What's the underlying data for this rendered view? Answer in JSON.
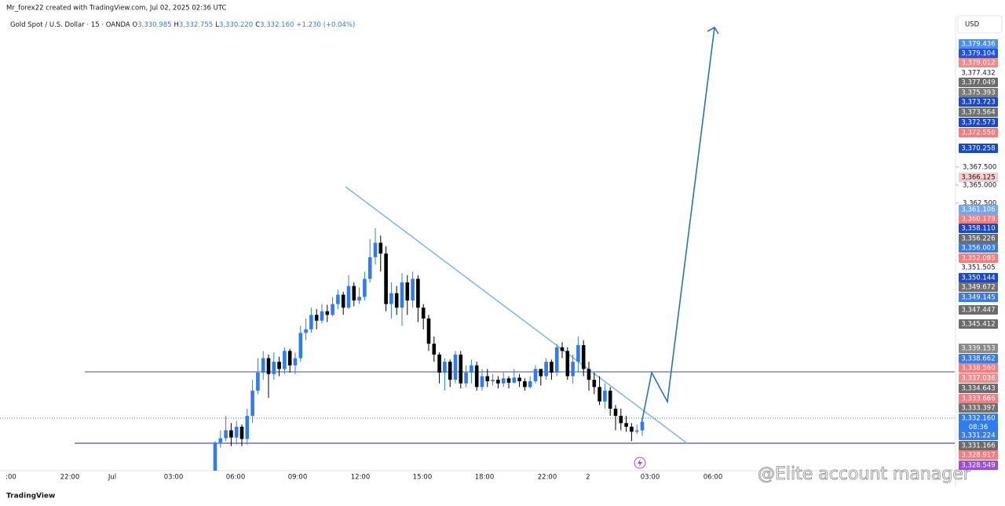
{
  "chart_data": {
    "type": "candlestick",
    "title": "Mr_forex22 created with TradingView.com, Jul 02, 2025 02:36 UTC",
    "symbol": "Gold Spot / U.S. Dollar · 15 · OANDA",
    "ohlc_header": {
      "o_key": "O",
      "o": "3,330.985",
      "h_key": "H",
      "h": "3,332.755",
      "l_key": "L",
      "l": "3,330.220",
      "c_key": "C",
      "c": "3,332.160",
      "change": "+1.230 (+0.04%)"
    },
    "currency": "USD",
    "countdown": "08:36",
    "watermark": "@Elite account manager",
    "brand": "TradingView",
    "up_color": "#2f7bf0",
    "down_color": "#000000",
    "ylim": [
      3325.4,
      3386.3
    ],
    "yticks": [
      {
        "value": 3367.5,
        "label": "3,367.500"
      },
      {
        "value": 3365,
        "label": "3,365.000"
      },
      {
        "value": 3362.5,
        "label": "3,362.500"
      }
    ],
    "x_labels": [
      ":00",
      "22:00",
      "Jul",
      "03:00",
      "06:00",
      "09:00",
      "12:00",
      "15:00",
      "18:00",
      "22:00",
      "2",
      "03:00",
      "06:00"
    ],
    "candles": [
      {
        "o": 3325.4,
        "h": 3329.5,
        "l": 3325.4,
        "c": 3329.3
      },
      {
        "o": 3329.3,
        "h": 3331.0,
        "l": 3328.6,
        "c": 3329.9
      },
      {
        "o": 3329.9,
        "h": 3333.0,
        "l": 3329.5,
        "c": 3331.0
      },
      {
        "o": 3331.0,
        "h": 3332.0,
        "l": 3328.8,
        "c": 3330.0
      },
      {
        "o": 3330.0,
        "h": 3332.3,
        "l": 3329.0,
        "c": 3331.5
      },
      {
        "o": 3331.5,
        "h": 3331.8,
        "l": 3328.8,
        "c": 3329.8
      },
      {
        "o": 3329.8,
        "h": 3334.0,
        "l": 3329.0,
        "c": 3333.0
      },
      {
        "o": 3333.0,
        "h": 3338.0,
        "l": 3332.0,
        "c": 3336.5
      },
      {
        "o": 3336.5,
        "h": 3341.0,
        "l": 3336.0,
        "c": 3339.0
      },
      {
        "o": 3339.0,
        "h": 3342.0,
        "l": 3338.0,
        "c": 3341.0
      },
      {
        "o": 3341.0,
        "h": 3341.5,
        "l": 3335.5,
        "c": 3338.8
      },
      {
        "o": 3338.8,
        "h": 3341.8,
        "l": 3338.0,
        "c": 3340.5
      },
      {
        "o": 3340.5,
        "h": 3341.2,
        "l": 3338.5,
        "c": 3339.5
      },
      {
        "o": 3339.5,
        "h": 3342.5,
        "l": 3338.8,
        "c": 3342.0
      },
      {
        "o": 3342.0,
        "h": 3342.3,
        "l": 3339.0,
        "c": 3340.0
      },
      {
        "o": 3340.0,
        "h": 3341.8,
        "l": 3338.8,
        "c": 3341.0
      },
      {
        "o": 3341.0,
        "h": 3345.5,
        "l": 3340.5,
        "c": 3344.5
      },
      {
        "o": 3344.5,
        "h": 3346.5,
        "l": 3343.5,
        "c": 3345.0
      },
      {
        "o": 3345.0,
        "h": 3348.0,
        "l": 3344.5,
        "c": 3347.0
      },
      {
        "o": 3347.0,
        "h": 3347.8,
        "l": 3345.0,
        "c": 3346.2
      },
      {
        "o": 3346.2,
        "h": 3348.5,
        "l": 3345.8,
        "c": 3347.5
      },
      {
        "o": 3347.5,
        "h": 3348.4,
        "l": 3346.0,
        "c": 3347.0
      },
      {
        "o": 3347.0,
        "h": 3349.5,
        "l": 3346.8,
        "c": 3348.5
      },
      {
        "o": 3348.5,
        "h": 3350.5,
        "l": 3347.8,
        "c": 3349.8
      },
      {
        "o": 3349.8,
        "h": 3350.2,
        "l": 3347.0,
        "c": 3348.0
      },
      {
        "o": 3348.0,
        "h": 3352.5,
        "l": 3347.8,
        "c": 3351.0
      },
      {
        "o": 3351.0,
        "h": 3351.5,
        "l": 3348.2,
        "c": 3349.0
      },
      {
        "o": 3349.0,
        "h": 3350.8,
        "l": 3348.5,
        "c": 3349.5
      },
      {
        "o": 3349.5,
        "h": 3353.0,
        "l": 3349.0,
        "c": 3352.0
      },
      {
        "o": 3352.0,
        "h": 3357.5,
        "l": 3351.5,
        "c": 3355.0
      },
      {
        "o": 3355.0,
        "h": 3359.0,
        "l": 3354.0,
        "c": 3357.0
      },
      {
        "o": 3357.0,
        "h": 3358.0,
        "l": 3353.0,
        "c": 3355.5
      },
      {
        "o": 3355.5,
        "h": 3356.5,
        "l": 3347.5,
        "c": 3348.5
      },
      {
        "o": 3348.5,
        "h": 3351.5,
        "l": 3346.5,
        "c": 3350.0
      },
      {
        "o": 3350.0,
        "h": 3351.0,
        "l": 3347.0,
        "c": 3348.0
      },
      {
        "o": 3348.0,
        "h": 3352.8,
        "l": 3345.5,
        "c": 3351.5
      },
      {
        "o": 3351.5,
        "h": 3352.5,
        "l": 3347.0,
        "c": 3349.0
      },
      {
        "o": 3349.0,
        "h": 3353.0,
        "l": 3348.0,
        "c": 3352.0
      },
      {
        "o": 3352.0,
        "h": 3352.5,
        "l": 3346.0,
        "c": 3348.0
      },
      {
        "o": 3348.0,
        "h": 3348.5,
        "l": 3345.0,
        "c": 3346.5
      },
      {
        "o": 3346.5,
        "h": 3347.0,
        "l": 3342.0,
        "c": 3343.0
      },
      {
        "o": 3343.0,
        "h": 3344.0,
        "l": 3340.5,
        "c": 3341.5
      },
      {
        "o": 3341.5,
        "h": 3341.8,
        "l": 3337.5,
        "c": 3339.0
      },
      {
        "o": 3339.0,
        "h": 3341.0,
        "l": 3336.5,
        "c": 3340.5
      },
      {
        "o": 3340.5,
        "h": 3340.8,
        "l": 3337.0,
        "c": 3338.0
      },
      {
        "o": 3338.0,
        "h": 3342.0,
        "l": 3337.5,
        "c": 3341.5
      },
      {
        "o": 3341.5,
        "h": 3342.0,
        "l": 3336.8,
        "c": 3337.5
      },
      {
        "o": 3337.5,
        "h": 3340.0,
        "l": 3337.0,
        "c": 3339.0
      },
      {
        "o": 3339.0,
        "h": 3340.8,
        "l": 3337.5,
        "c": 3340.0
      },
      {
        "o": 3340.0,
        "h": 3340.5,
        "l": 3336.5,
        "c": 3337.0
      },
      {
        "o": 3337.0,
        "h": 3339.5,
        "l": 3336.5,
        "c": 3338.5
      },
      {
        "o": 3338.5,
        "h": 3339.5,
        "l": 3337.0,
        "c": 3337.8
      },
      {
        "o": 3337.8,
        "h": 3338.8,
        "l": 3337.2,
        "c": 3338.0
      },
      {
        "o": 3338.0,
        "h": 3338.5,
        "l": 3336.8,
        "c": 3337.5
      },
      {
        "o": 3337.5,
        "h": 3339.0,
        "l": 3337.0,
        "c": 3338.2
      },
      {
        "o": 3338.2,
        "h": 3338.5,
        "l": 3336.8,
        "c": 3337.6
      },
      {
        "o": 3337.6,
        "h": 3339.5,
        "l": 3337.5,
        "c": 3338.3
      },
      {
        "o": 3338.3,
        "h": 3338.8,
        "l": 3337.0,
        "c": 3337.8
      },
      {
        "o": 3337.8,
        "h": 3338.2,
        "l": 3336.5,
        "c": 3337.0
      },
      {
        "o": 3337.0,
        "h": 3338.5,
        "l": 3336.8,
        "c": 3337.8
      },
      {
        "o": 3337.8,
        "h": 3340.0,
        "l": 3337.5,
        "c": 3339.5
      },
      {
        "o": 3339.5,
        "h": 3339.5,
        "l": 3337.2,
        "c": 3338.5
      },
      {
        "o": 3338.5,
        "h": 3341.0,
        "l": 3338.0,
        "c": 3340.5
      },
      {
        "o": 3340.5,
        "h": 3340.8,
        "l": 3338.0,
        "c": 3339.0
      },
      {
        "o": 3339.0,
        "h": 3343.0,
        "l": 3338.5,
        "c": 3342.5
      },
      {
        "o": 3342.5,
        "h": 3343.2,
        "l": 3341.0,
        "c": 3342.0
      },
      {
        "o": 3342.0,
        "h": 3342.5,
        "l": 3338.0,
        "c": 3338.5
      },
      {
        "o": 3338.5,
        "h": 3341.5,
        "l": 3337.5,
        "c": 3340.5
      },
      {
        "o": 3340.5,
        "h": 3344.0,
        "l": 3339.0,
        "c": 3342.8
      },
      {
        "o": 3342.8,
        "h": 3343.5,
        "l": 3338.5,
        "c": 3339.5
      },
      {
        "o": 3339.5,
        "h": 3340.5,
        "l": 3336.5,
        "c": 3338.0
      },
      {
        "o": 3338.0,
        "h": 3339.0,
        "l": 3336.0,
        "c": 3337.0
      },
      {
        "o": 3337.0,
        "h": 3338.5,
        "l": 3334.5,
        "c": 3335.0
      },
      {
        "o": 3335.0,
        "h": 3337.5,
        "l": 3334.0,
        "c": 3336.5
      },
      {
        "o": 3336.5,
        "h": 3337.0,
        "l": 3333.0,
        "c": 3334.0
      },
      {
        "o": 3334.0,
        "h": 3334.5,
        "l": 3331.0,
        "c": 3333.0
      },
      {
        "o": 3333.0,
        "h": 3334.0,
        "l": 3331.0,
        "c": 3332.0
      },
      {
        "o": 3332.0,
        "h": 3333.0,
        "l": 3330.8,
        "c": 3331.5
      },
      {
        "o": 3331.5,
        "h": 3332.0,
        "l": 3329.5,
        "c": 3330.8
      },
      {
        "o": 3330.8,
        "h": 3331.8,
        "l": 3330.5,
        "c": 3330.985
      },
      {
        "o": 3330.985,
        "h": 3332.755,
        "l": 3330.22,
        "c": 3332.16
      }
    ],
    "badges": [
      {
        "value": 3379.436,
        "label": "3,379.436",
        "color": "#4a8ff0"
      },
      {
        "value": 3379.104,
        "label": "3,379.104",
        "color": "#1e53e5"
      },
      {
        "value": 3379.012,
        "label": "3,379.012",
        "color": "#f28b8b"
      },
      {
        "value": 3377.432,
        "label": "3,377.432",
        "color": "#ffffff"
      },
      {
        "value": 3377.049,
        "label": "3,377.049",
        "color": "#6b6b6b"
      },
      {
        "value": 3375.393,
        "label": "3,375.393",
        "color": "#7a7a7a"
      },
      {
        "value": 3373.723,
        "label": "3,373.723",
        "color": "#1848cc"
      },
      {
        "value": 3373.564,
        "label": "3,373.564",
        "color": "#707070"
      },
      {
        "value": 3372.573,
        "label": "3,372.573",
        "color": "#1848cc"
      },
      {
        "value": 3372.556,
        "label": "3,372.556",
        "color": "#f77c80"
      },
      {
        "value": 3370.258,
        "label": "3,370.258",
        "color": "#1848cc"
      },
      {
        "value": 3366.125,
        "label": "3,366.125",
        "color": "#f8cccc"
      },
      {
        "value": 3361.106,
        "label": "3,361.106",
        "color": "#6fa8f0"
      },
      {
        "value": 3360.178,
        "label": "3,360.178",
        "color": "#f77c80"
      },
      {
        "value": 3358.11,
        "label": "3,358.110",
        "color": "#1848cc"
      },
      {
        "value": 3356.226,
        "label": "3,356.226",
        "color": "#6b6b6b"
      },
      {
        "value": 3356.003,
        "label": "3,356.003",
        "color": "#3d7be0"
      },
      {
        "value": 3352.085,
        "label": "3,352.085",
        "color": "#f77c80"
      },
      {
        "value": 3351.505,
        "label": "3,351.505",
        "color": "#ffffff"
      },
      {
        "value": 3350.144,
        "label": "3,350.144",
        "color": "#1848cc"
      },
      {
        "value": 3349.672,
        "label": "3,349.672",
        "color": "#707070"
      },
      {
        "value": 3349.145,
        "label": "3,349.145",
        "color": "#3d7be0"
      },
      {
        "value": 3347.447,
        "label": "3,347.447",
        "color": "#6b6b6b"
      },
      {
        "value": 3345.412,
        "label": "3,345.412",
        "color": "#6b6b6b"
      },
      {
        "value": 3339.153,
        "label": "3,339.153",
        "color": "#8a8a8a"
      },
      {
        "value": 3338.662,
        "label": "3,338.662",
        "color": "#3d7be0"
      },
      {
        "value": 3338.56,
        "label": "3,338.560",
        "color": "#f77c80"
      },
      {
        "value": 3337.036,
        "label": "3,337.036",
        "color": "#f08c8c"
      },
      {
        "value": 3334.643,
        "label": "3,334.643",
        "color": "#6b6b6b"
      },
      {
        "value": 3333.666,
        "label": "3,333.666",
        "color": "#f77c80"
      },
      {
        "value": 3333.397,
        "label": "3,333.397",
        "color": "#707070"
      },
      {
        "value": 3332.16,
        "label": "3,332.160",
        "color": "#2f7bf0"
      },
      {
        "value": 3331.224,
        "label": "3,331.224",
        "color": "#3d7be0"
      },
      {
        "value": 3331.166,
        "label": "3,331.166",
        "color": "#6b6b6b"
      },
      {
        "value": 3328.917,
        "label": "3,328.917",
        "color": "#f77c80"
      },
      {
        "value": 3328.549,
        "label": "3,328.549",
        "color": "#9c4fd6"
      }
    ]
  }
}
